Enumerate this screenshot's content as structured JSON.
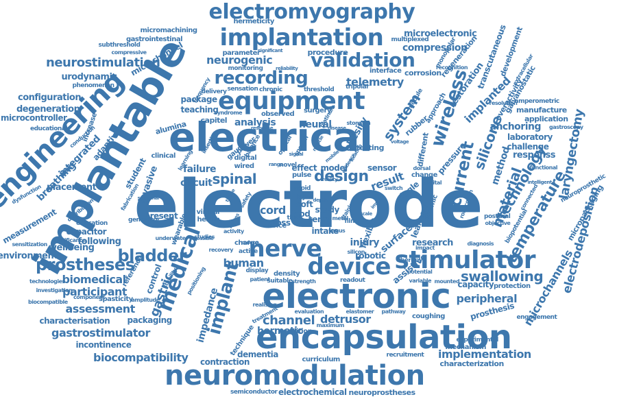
{
  "palette": {
    "word_color": "#3d77ad",
    "background": "#ffffff"
  },
  "words": {
    "electrode": "electrode",
    "electrical": "electrical",
    "implantable": "implantable",
    "electronic": "electronic",
    "neuromodulation": "neuromodulation",
    "encapsulation": "encapsulation",
    "engineering": "engineering",
    "stimulator": "stimulator",
    "equipment": "equipment",
    "implantation": "implantation",
    "electromyography": "electromyography",
    "nerve": "nerve",
    "device": "device",
    "medical": "medical",
    "implant": "implant",
    "recording": "recording",
    "validation": "validation",
    "wireless": "wireless",
    "current": "current",
    "prostheses": "prostheses",
    "bladder": "bladder",
    "temperature": "temperature",
    "technology": "technology",
    "material": "material",
    "silicone": "silicone",
    "spinal": "spinal",
    "design": "design",
    "system": "system",
    "laryngectomy": "laryngectomy",
    "electrodeposition": "electrodeposition",
    "gastric": "gastric",
    "channel": "channel",
    "swallowing": "swallowing",
    "neurostimulation": "neurostimulation",
    "gastrostimulator": "gastrostimulator",
    "biocompatibility": "biocompatibility",
    "implementation": "implementation",
    "human": "human",
    "detrusor": "detrusor",
    "peripheral": "peripheral",
    "microchannels": "microchannels",
    "telemetry": "telemetry",
    "neurogenic": "neurogenic",
    "biomedical": "biomedical",
    "assessment": "assessment",
    "participant": "participant",
    "cord": "cord",
    "injury": "injury",
    "research": "research",
    "hermetic": "hermetic",
    "integrated": "integrated",
    "breathing": "breathing",
    "compression": "compression",
    "degeneration": "degeneration",
    "configuration": "configuration",
    "urodynamic": "urodynamic",
    "microcontroller": "microcontroller",
    "microelectronic": "microelectronic",
    "implanted": "implanted",
    "restoration": "restoration",
    "anchoring": "anchoring",
    "laboratory": "laboratory",
    "challenge": "challenge",
    "method": "method",
    "analysis": "analysis",
    "neural": "neural",
    "obesity": "obesity",
    "circuit": "circuit",
    "failure": "failure",
    "invasive": "invasive",
    "student": "student",
    "placement": "placement",
    "measurement": "measurement",
    "environment": "environment",
    "wellbeing": "wellbeing",
    "following": "following",
    "capacitor": "capacitor",
    "characterisation": "characterisation",
    "incontinence": "incontinence",
    "packaging": "packaging",
    "spasticity": "spasticity",
    "technique": "technique",
    "dementia": "dementia",
    "contraction": "contraction",
    "electrochemical": "electrochemical",
    "neuroprostheses": "neuroprostheses",
    "semiconductor": "semiconductor",
    "characterization": "characterization",
    "recruitment": "recruitment",
    "coughing": "coughing",
    "prosthesis": "prosthesis",
    "engagement": "engagement",
    "capacity": "capacity",
    "assistive": "assistive",
    "robotic": "robotic",
    "leakage": "leakage",
    "surface": "surface",
    "sensor": "sensor",
    "result": "result",
    "single": "single",
    "wired": "wired",
    "digital": "digital",
    "power": "power",
    "flexible": "flexible",
    "study": "study",
    "intake": "intake",
    "term": "term",
    "cross": "cross",
    "voice": "voice",
    "present": "present",
    "wearable": "wearable",
    "health": "health",
    "control": "control",
    "impedance": "impedance",
    "teaching": "teaching",
    "package": "package",
    "alumina": "alumina",
    "application": "application",
    "manufacture": "manufacture",
    "overactivity": "overactivity",
    "galvanostatic": "galvanostatic",
    "amperometric": "amperometric",
    "transcutaneous": "transcutaneous",
    "development": "development",
    "regeneration": "regeneration",
    "corrosion": "corrosion",
    "interface": "interface",
    "procedure": "procedure",
    "parameter": "parameter",
    "hermeticity": "hermeticity",
    "micromachining": "micromachining",
    "gastrointestinal": "gastrointestinal",
    "subthreshold": "subthreshold",
    "compressive": "compressive",
    "microchannel": "microchannel",
    "phenomenon": "phenomenon",
    "educational": "educational",
    "increase": "increase",
    "adaptive": "adaptive",
    "frequency": "frequency",
    "delivery": "delivery",
    "sensation": "sensation",
    "chronic": "chronic",
    "threshold": "threshold",
    "tripolar": "tripolar",
    "monitoring": "monitoring",
    "multiplexed": "multiplexed",
    "monopolar": "monopolar",
    "recognition": "recognition",
    "extracellular": "extracellular",
    "resolution": "resolution",
    "gastroscopy": "gastroscopy",
    "responss": "responss",
    "functional": "functional",
    "connected": "connected",
    "biopotential": "biopotential",
    "micropackaging": "micropackaging",
    "neuroprosthetic": "neuroprosthetic",
    "intelligent": "intelligent",
    "postural": "postural",
    "objective": "objective",
    "diagnosis": "diagnosis",
    "protection": "protection",
    "experimental": "experimental",
    "mechanism": "mechanism",
    "therapy": "therapy",
    "potential": "potential",
    "mounted": "mounted",
    "variable": "variable",
    "pressure": "pressure",
    "different": "different",
    "ceramic": "ceramic",
    "change": "change",
    "genital": "genital",
    "dorsal": "dorsal",
    "stomach": "stomach",
    "surgery": "surgery",
    "observed": "observed",
    "rubber": "rubber",
    "testing": "testing",
    "model": "model",
    "effect": "effect",
    "novel": "novel",
    "pulse": "pulse",
    "rapid": "rapid",
    "layer": "layer",
    "soft": "soft",
    "food": "food",
    "thick": "thick",
    "metal": "metal",
    "film": "film",
    "vagus": "vagus",
    "silicon": "silicon",
    "elastomer": "elastomer",
    "pathway": "pathway",
    "evaluation": "evaluation",
    "condition": "condition",
    "maximum": "maximum",
    "curriculum": "curriculum",
    "readout": "readout",
    "strength": "strength",
    "density": "density",
    "suitable": "suitable",
    "display": "display",
    "active": "active",
    "patient": "patient",
    "charge": "charge",
    "reduce": "reduce",
    "realising": "realising",
    "recovery": "recovery",
    "underwater": "underwater",
    "studies": "studies",
    "possible": "possible",
    "activity": "activity",
    "virtual": "virtual",
    "generator": "generator",
    "education": "education",
    "sensitization": "sensitization",
    "significance": "significance",
    "technologies": "technologies",
    "investigation": "investigation",
    "biocompatible": "biocompatible",
    "component": "component",
    "amplitude": "amplitude",
    "reference": "reference",
    "stability": "stability",
    "positioning": "positioning",
    "treatment": "treatment",
    "dysfunction": "dysfunction",
    "distribution": "distribution",
    "conduction": "conduction",
    "learning": "learning",
    "clinical": "clinical",
    "insertion": "insertion",
    "syndrome": "syndrome",
    "capitel": "capitel",
    "gauge": "gauge",
    "balance": "balance",
    "optical": "optical",
    "speech": "speech",
    "platinum": "platinum",
    "module": "module",
    "approach": "approach",
    "reliability": "reliability",
    "significant": "significant",
    "fabrication": "fabrication",
    "sectional": "sectional",
    "stainless": "stainless",
    "robocough": "robocough",
    "voltage": "voltage",
    "switch": "switch",
    "impact": "impact",
    "safety": "safety",
    "muscle": "muscle",
    "mobile": "mobile",
    "tissue": "tissue",
    "depth": "depth",
    "signal": "signal",
    "range": "range",
    "scale": "scale",
    "nerves": "nerves",
    "disease": "disease",
    "evidence": "evidence",
    "reality": "reality",
    "impair": "impair",
    "location": "location",
    "response": "response"
  }
}
